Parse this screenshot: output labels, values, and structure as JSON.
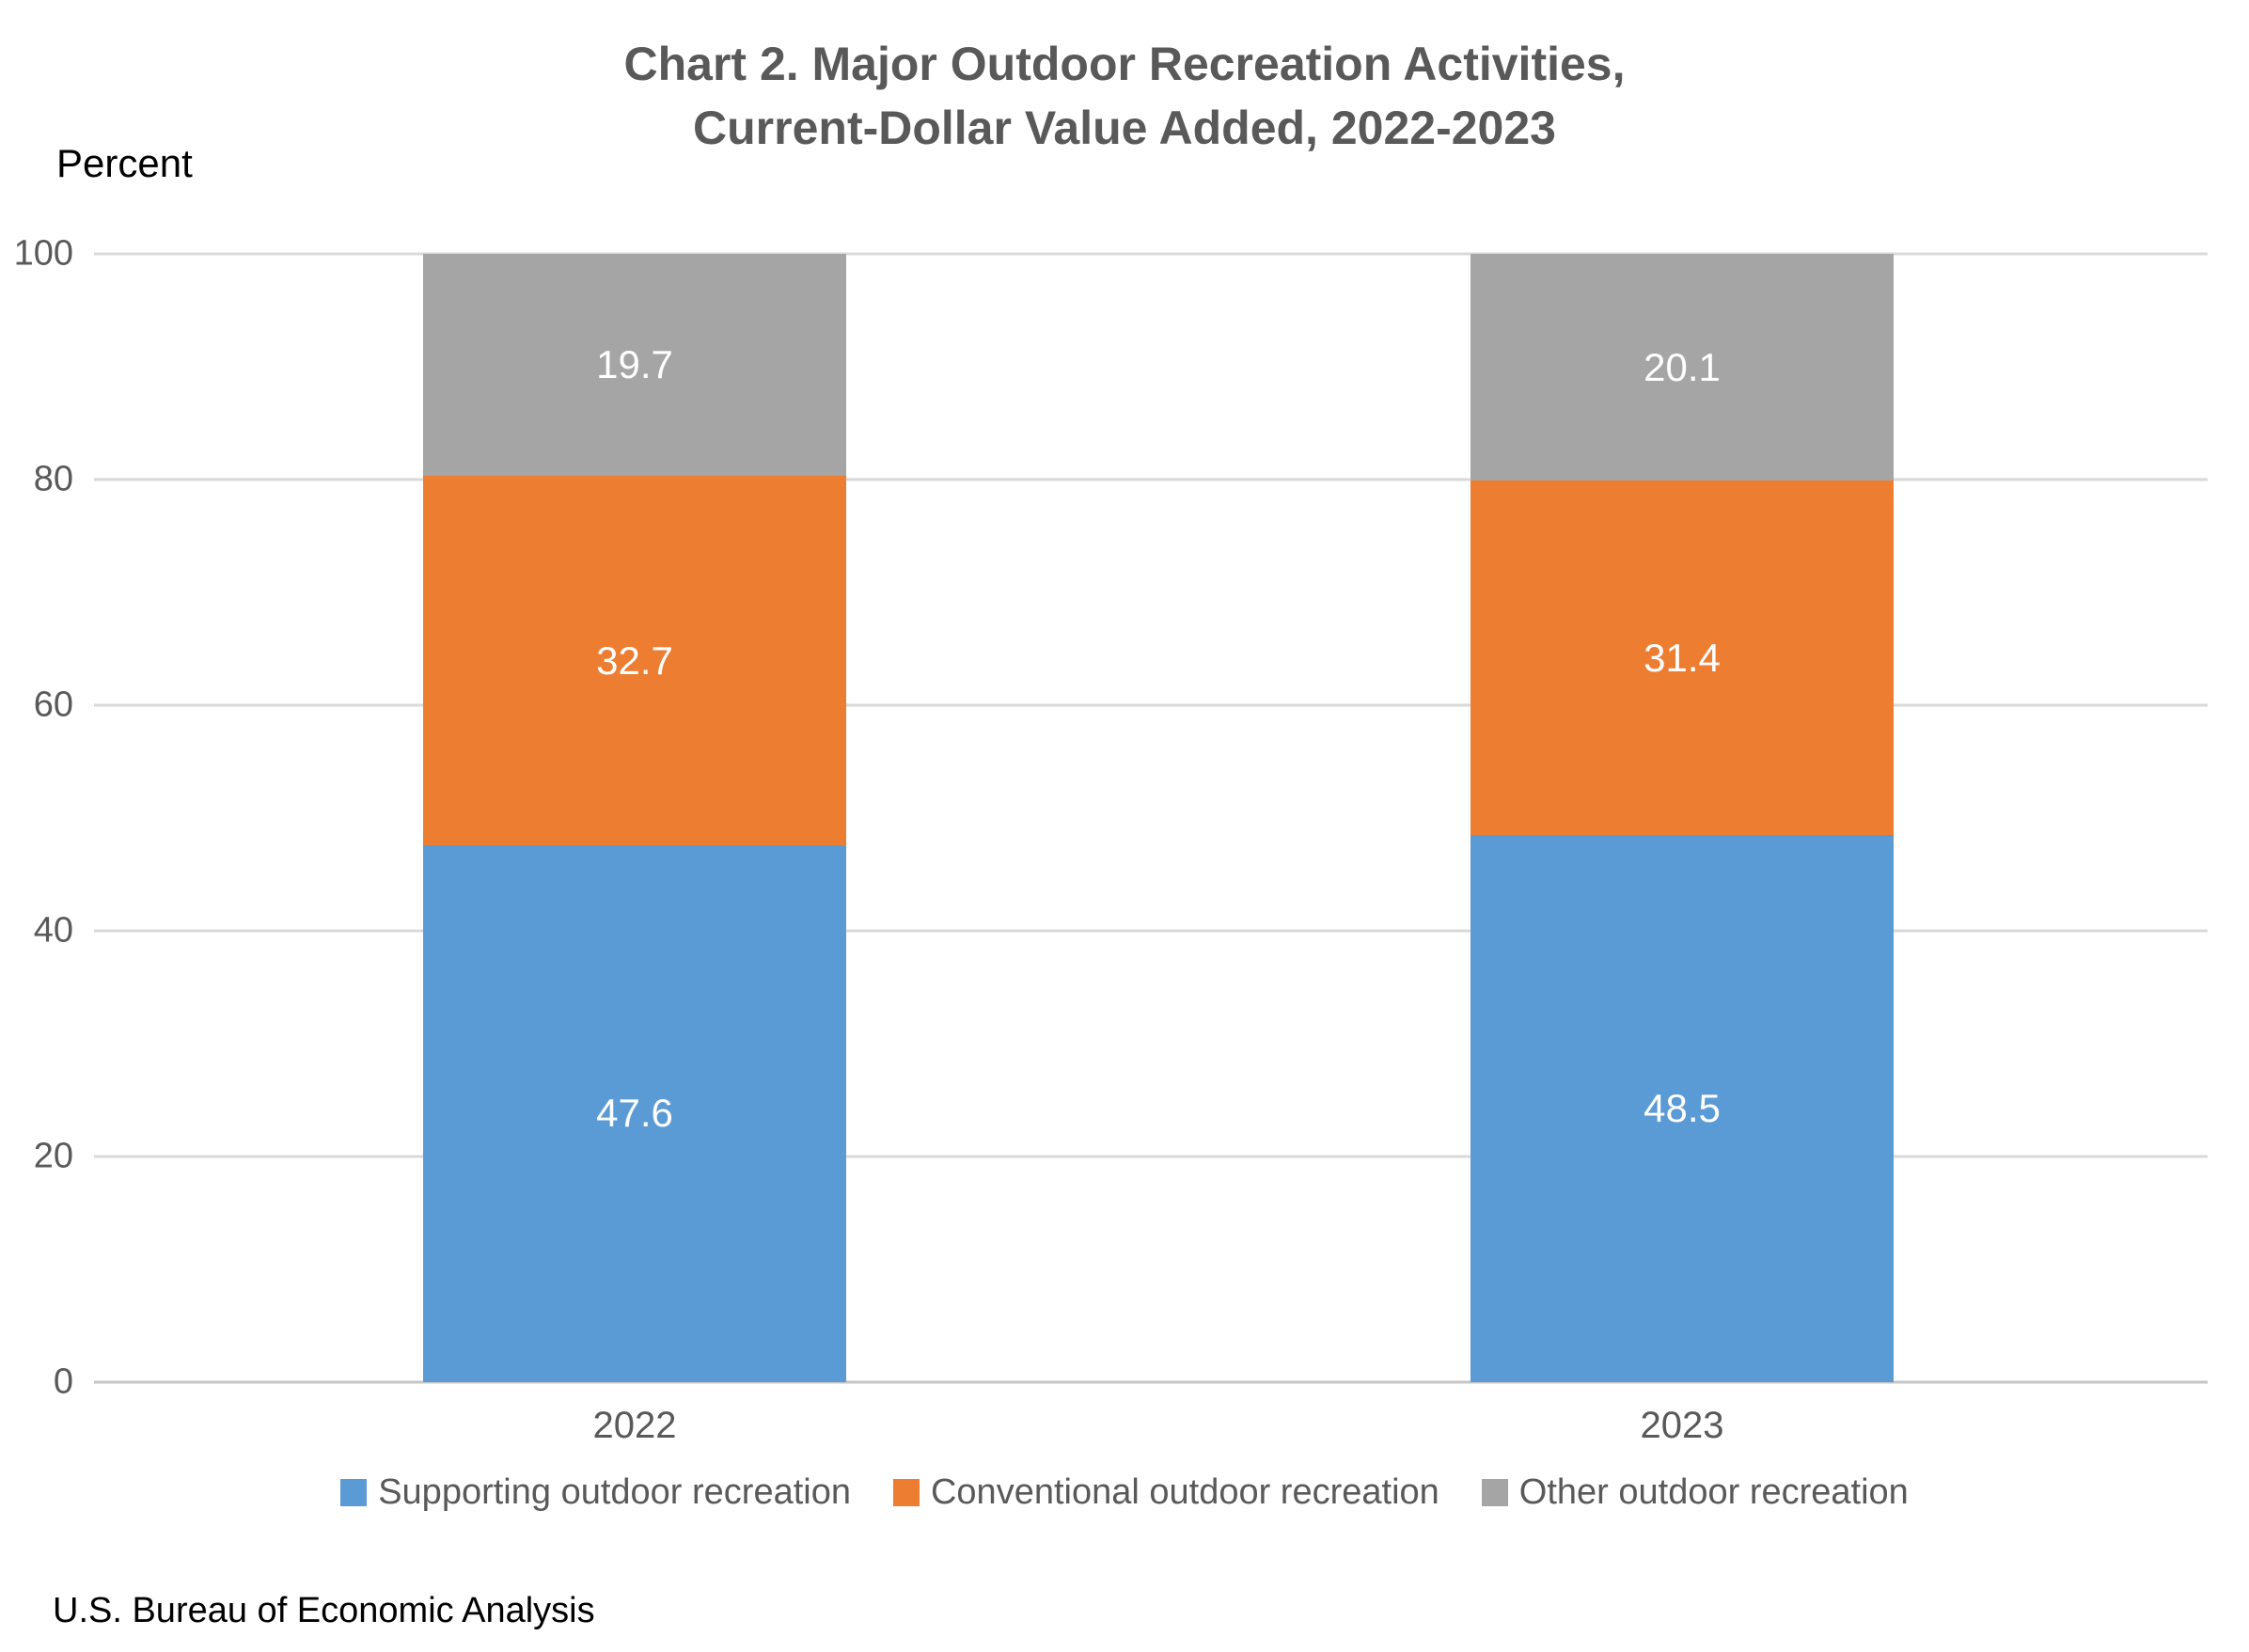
{
  "title": {
    "line1": "Chart 2. Major Outdoor Recreation Activities,",
    "line2": "Current-Dollar Value Added, 2022-2023"
  },
  "axis": {
    "unit_label": "Percent",
    "ticks": [
      "100",
      "80",
      "60",
      "40",
      "20",
      "0"
    ]
  },
  "legend": [
    {
      "label": "Supporting outdoor recreation",
      "color": "#5B9BD5"
    },
    {
      "label": "Conventional outdoor recreation",
      "color": "#ED7D31"
    },
    {
      "label": "Other outdoor recreation",
      "color": "#A5A5A5"
    }
  ],
  "footer": "U.S. Bureau of Economic Analysis",
  "chart_data": {
    "type": "bar",
    "stacked": true,
    "title": "Chart 2. Major Outdoor Recreation Activities, Current-Dollar Value Added, 2022-2023",
    "categories": [
      "2022",
      "2023"
    ],
    "series": [
      {
        "name": "Supporting outdoor recreation",
        "color": "#5B9BD5",
        "values": [
          47.6,
          48.5
        ]
      },
      {
        "name": "Conventional outdoor recreation",
        "color": "#ED7D31",
        "values": [
          32.7,
          31.4
        ]
      },
      {
        "name": "Other outdoor recreation",
        "color": "#A5A5A5",
        "values": [
          19.7,
          20.1
        ]
      }
    ],
    "xlabel": "",
    "ylabel": "Percent",
    "ylim": [
      0,
      100
    ],
    "grid": true,
    "gridline_interval": 20,
    "legend_position": "bottom",
    "value_labels": "center-white"
  }
}
